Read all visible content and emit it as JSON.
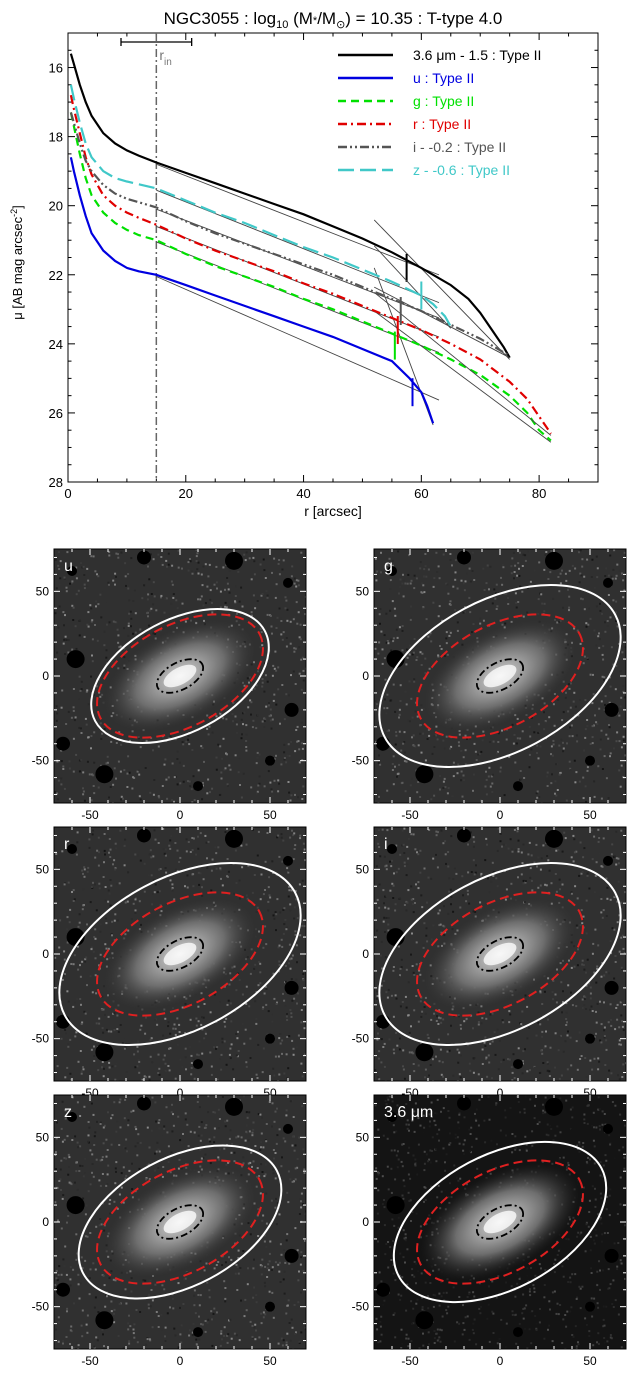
{
  "chart_data": [
    {
      "type": "line",
      "title_parts": {
        "galaxy": "NGC3055 : log",
        "sub": "10",
        "mass": " (M",
        "mstar": "*",
        "over": "/M",
        "sun": "⊙",
        "rest": ") = 10.35 : T-type 4.0"
      },
      "xlabel": "r [arcsec]",
      "ylabel_parts": {
        "mu": "μ [AB mag arcsec",
        "exp": "-2",
        "close": "]"
      },
      "xlim": [
        0,
        90
      ],
      "ylim": [
        28,
        15
      ],
      "xticks": [
        0,
        20,
        40,
        60,
        80
      ],
      "yticks": [
        16,
        18,
        20,
        22,
        24,
        26,
        28
      ],
      "r_in": {
        "value": 15,
        "label": "r",
        "sub": "in",
        "err": [
          9,
          21
        ]
      },
      "legend_position": "top-right",
      "series": [
        {
          "name": "3.6 μm - 1.5 : Type II",
          "color": "#000000",
          "dash": "solid",
          "x": [
            0.5,
            1,
            2,
            3,
            4,
            6,
            8,
            10,
            12,
            15,
            20,
            25,
            30,
            35,
            40,
            45,
            50,
            55,
            60,
            65,
            68,
            70,
            72,
            74,
            75
          ],
          "y": [
            15.6,
            15.9,
            16.5,
            17.0,
            17.4,
            17.9,
            18.2,
            18.4,
            18.55,
            18.75,
            19.05,
            19.35,
            19.65,
            19.95,
            20.25,
            20.6,
            20.95,
            21.35,
            21.8,
            22.3,
            22.7,
            23.1,
            23.6,
            24.1,
            24.4
          ],
          "break": 57.5
        },
        {
          "name": "u : Type II",
          "color": "#0000e0",
          "dash": "solid",
          "x": [
            0.5,
            1,
            2,
            3,
            4,
            6,
            8,
            10,
            12,
            15,
            20,
            25,
            30,
            35,
            40,
            45,
            50,
            55,
            58,
            60,
            61,
            62
          ],
          "y": [
            18.6,
            19.0,
            19.7,
            20.3,
            20.8,
            21.3,
            21.6,
            21.8,
            21.9,
            22.0,
            22.3,
            22.6,
            22.9,
            23.2,
            23.5,
            23.8,
            24.15,
            24.5,
            25.0,
            25.4,
            25.8,
            26.3
          ],
          "break": 58.5
        },
        {
          "name": "g : Type II",
          "color": "#00e000",
          "dash": "dashed",
          "x": [
            0.5,
            1,
            2,
            3,
            4,
            6,
            8,
            10,
            12,
            15,
            20,
            25,
            30,
            35,
            40,
            45,
            50,
            55,
            60,
            65,
            70,
            75,
            78,
            80,
            82
          ],
          "y": [
            17.3,
            17.7,
            18.5,
            19.2,
            19.7,
            20.2,
            20.5,
            20.7,
            20.85,
            21.0,
            21.4,
            21.75,
            22.05,
            22.35,
            22.7,
            23.0,
            23.35,
            23.7,
            24.05,
            24.45,
            24.9,
            25.5,
            26.0,
            26.5,
            26.8
          ],
          "break": 55.5
        },
        {
          "name": "r : Type II",
          "color": "#e00000",
          "dash": "dashdot",
          "x": [
            0.5,
            1,
            2,
            3,
            4,
            6,
            8,
            10,
            12,
            15,
            20,
            25,
            30,
            35,
            40,
            45,
            50,
            55,
            60,
            65,
            70,
            75,
            78,
            80,
            82
          ],
          "y": [
            16.8,
            17.2,
            17.9,
            18.6,
            19.1,
            19.7,
            20.0,
            20.2,
            20.35,
            20.55,
            20.95,
            21.3,
            21.6,
            21.9,
            22.25,
            22.55,
            22.9,
            23.25,
            23.6,
            24.0,
            24.45,
            25.1,
            25.6,
            26.1,
            26.6
          ],
          "break": 56.0
        },
        {
          "name": "i - -0.2 : Type II",
          "color": "#555555",
          "dash": "dashdotdot",
          "x": [
            0.5,
            1,
            2,
            3,
            4,
            6,
            8,
            10,
            12,
            15,
            20,
            25,
            30,
            35,
            40,
            45,
            50,
            55,
            60,
            65,
            70,
            75
          ],
          "y": [
            17.3,
            17.6,
            18.2,
            18.7,
            19.0,
            19.4,
            19.65,
            19.8,
            19.9,
            20.05,
            20.45,
            20.8,
            21.1,
            21.4,
            21.7,
            22.0,
            22.35,
            22.7,
            23.05,
            23.45,
            23.85,
            24.35
          ],
          "break": 56.5
        },
        {
          "name": "z - -0.6 : Type II",
          "color": "#40c8c8",
          "dash": "longdash",
          "x": [
            0.5,
            1,
            2,
            3,
            4,
            6,
            8,
            10,
            12,
            15,
            20,
            25,
            30,
            35,
            40,
            45,
            50,
            55,
            60,
            62,
            64,
            65
          ],
          "y": [
            16.5,
            16.9,
            17.6,
            18.2,
            18.6,
            19.0,
            19.2,
            19.3,
            19.38,
            19.5,
            19.85,
            20.2,
            20.5,
            20.85,
            21.2,
            21.5,
            21.85,
            22.2,
            22.6,
            22.85,
            23.2,
            23.5
          ],
          "break": 60.0
        }
      ]
    },
    {
      "type": "image",
      "panels": [
        {
          "label": "u",
          "xticks": [
            -50,
            0,
            50
          ],
          "yticks": [
            50,
            0,
            -50
          ],
          "show_outer": false,
          "outer_scale": 1.0
        },
        {
          "label": "g",
          "xticks": [
            -50,
            0,
            50
          ],
          "yticks": [
            50,
            0,
            -50
          ],
          "show_outer": true,
          "outer_scale": 1.25
        },
        {
          "label": "r",
          "xticks": [
            -50,
            0,
            50
          ],
          "yticks": [
            50,
            0,
            -50
          ],
          "show_outer": true,
          "outer_scale": 1.25
        },
        {
          "label": "i",
          "xticks": [
            -50,
            0,
            50
          ],
          "yticks": [
            50,
            0,
            -50
          ],
          "show_outer": true,
          "outer_scale": 1.25
        },
        {
          "label": "z",
          "xticks": [
            -50,
            0,
            50
          ],
          "yticks": [
            50,
            0,
            -50
          ],
          "show_outer": true,
          "outer_scale": 1.05
        },
        {
          "label": "3.6 μm",
          "xticks": [
            -50,
            0,
            50
          ],
          "yticks": [
            50,
            0,
            -50
          ],
          "show_outer": true,
          "outer_scale": 1.1
        }
      ],
      "extent": [
        -70,
        70,
        -75,
        75
      ]
    }
  ]
}
